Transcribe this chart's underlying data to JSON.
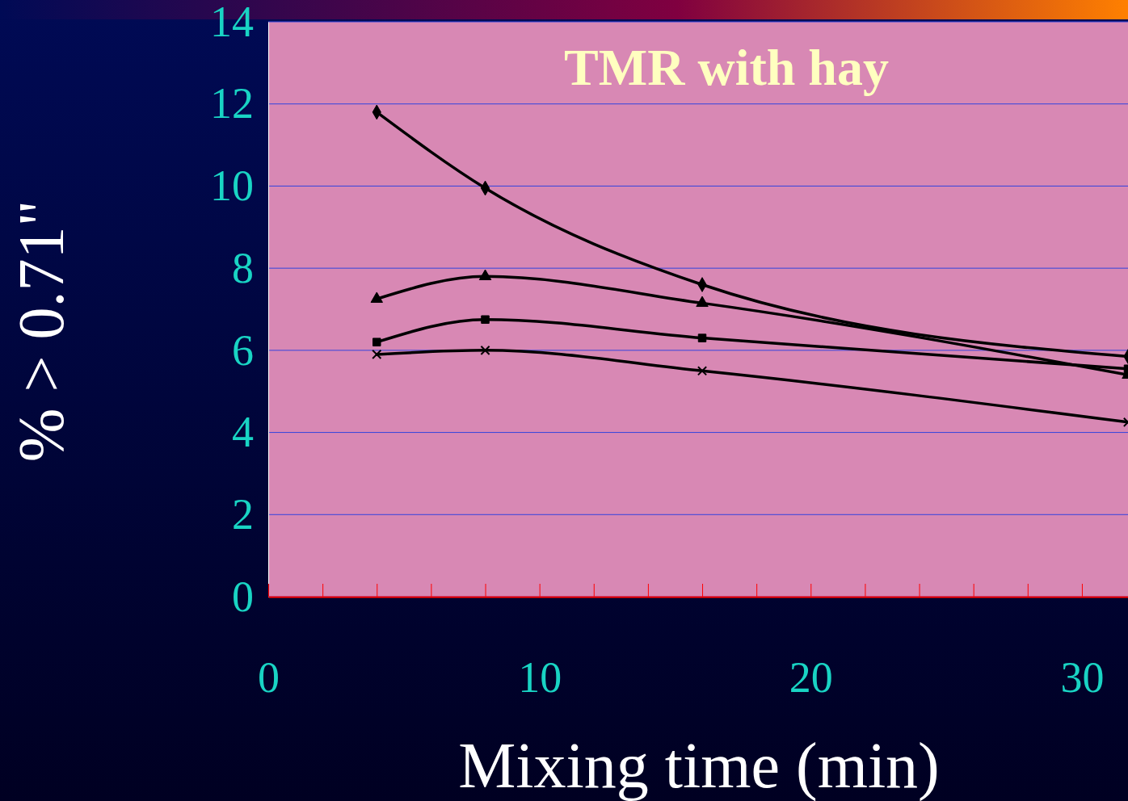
{
  "chart_data": {
    "type": "line",
    "title": "TMR with hay",
    "xlabel": "Mixing time (min)",
    "ylabel": "% > 0.71\"",
    "xlim": [
      0,
      31.7
    ],
    "ylim": [
      0,
      14
    ],
    "xticks": [
      0,
      {
        "value": 2,
        "label": null
      },
      {
        "value": 4,
        "label": null
      },
      {
        "value": 6,
        "label": null
      },
      {
        "value": 8,
        "label": null
      },
      10,
      {
        "value": 12,
        "label": null
      },
      {
        "value": 14,
        "label": null
      },
      {
        "value": 16,
        "label": null
      },
      {
        "value": 18,
        "label": null
      },
      20,
      {
        "value": 22,
        "label": null
      },
      {
        "value": 24,
        "label": null
      },
      {
        "value": 26,
        "label": null
      },
      {
        "value": 28,
        "label": null
      },
      30
    ],
    "yticks": [
      0,
      2,
      4,
      6,
      8,
      10,
      12,
      14
    ],
    "grid": "y",
    "line_style": "solid",
    "series": [
      {
        "color": "#000000",
        "marker": "diamond",
        "x": [
          4,
          8,
          16,
          31.7
        ],
        "values": [
          11.8,
          9.95,
          7.6,
          5.85
        ]
      },
      {
        "color": "#000000",
        "marker": "triangle",
        "x": [
          4,
          8,
          16,
          31.7
        ],
        "values": [
          7.25,
          7.8,
          7.15,
          5.4
        ]
      },
      {
        "color": "#000000",
        "marker": "square",
        "x": [
          4,
          8,
          16,
          31.7
        ],
        "values": [
          6.2,
          6.75,
          6.3,
          5.55
        ]
      },
      {
        "color": "#000000",
        "marker": "cross",
        "x": [
          4,
          8,
          16,
          31.7
        ],
        "values": [
          5.9,
          6.0,
          5.5,
          4.25
        ]
      }
    ]
  }
}
